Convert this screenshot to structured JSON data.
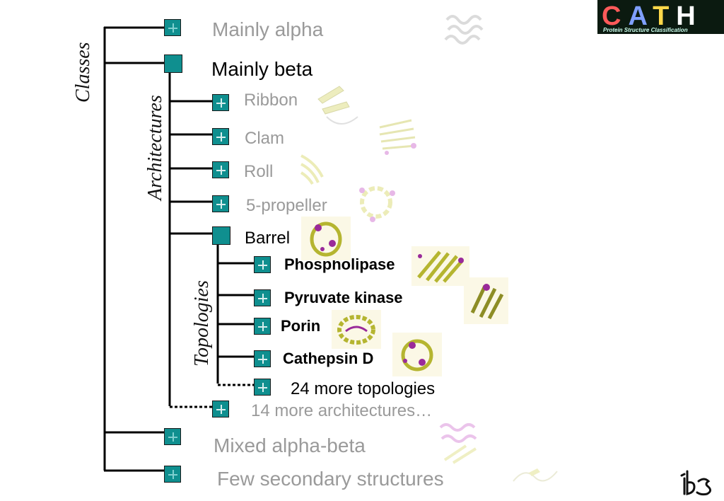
{
  "axes": {
    "classes": "Classes",
    "architectures": "Architectures",
    "topologies": "Topologies"
  },
  "logo": {
    "text": "CATH",
    "subtitle": "Protein Structure Classification",
    "letter_colors": [
      "#ff5a5a",
      "#7f9fff",
      "#ffd84a",
      "#ffffff"
    ]
  },
  "classes": [
    {
      "label": "Mainly alpha",
      "expanded": false
    },
    {
      "label": "Mainly beta",
      "expanded": true
    },
    {
      "label": "Mixed alpha-beta",
      "expanded": false
    },
    {
      "label": "Few secondary structures",
      "expanded": false
    }
  ],
  "architectures": [
    {
      "label": "Ribbon",
      "expanded": false
    },
    {
      "label": "Clam",
      "expanded": false
    },
    {
      "label": "Roll",
      "expanded": false
    },
    {
      "label": "5-propeller",
      "expanded": false
    },
    {
      "label": "Barrel",
      "expanded": true
    },
    {
      "label": "14 more architectures…",
      "expanded": false
    }
  ],
  "topologies": [
    {
      "label": "Phospholipase",
      "expanded": false
    },
    {
      "label": "Pyruvate kinase",
      "expanded": false
    },
    {
      "label": "Porin",
      "expanded": false
    },
    {
      "label": "Cathepsin D",
      "expanded": false
    },
    {
      "label": "24 more topologies",
      "expanded": false
    }
  ],
  "colors": {
    "node": "#0f8f8f",
    "faded_text": "#9a9a9a",
    "active_text": "#000000",
    "helix": "#c85ac8",
    "strand": "#d9d95a"
  },
  "icons": {
    "expand": "plus-icon",
    "collapse": "square-icon",
    "institution_logo": "ibs-logo-icon"
  }
}
